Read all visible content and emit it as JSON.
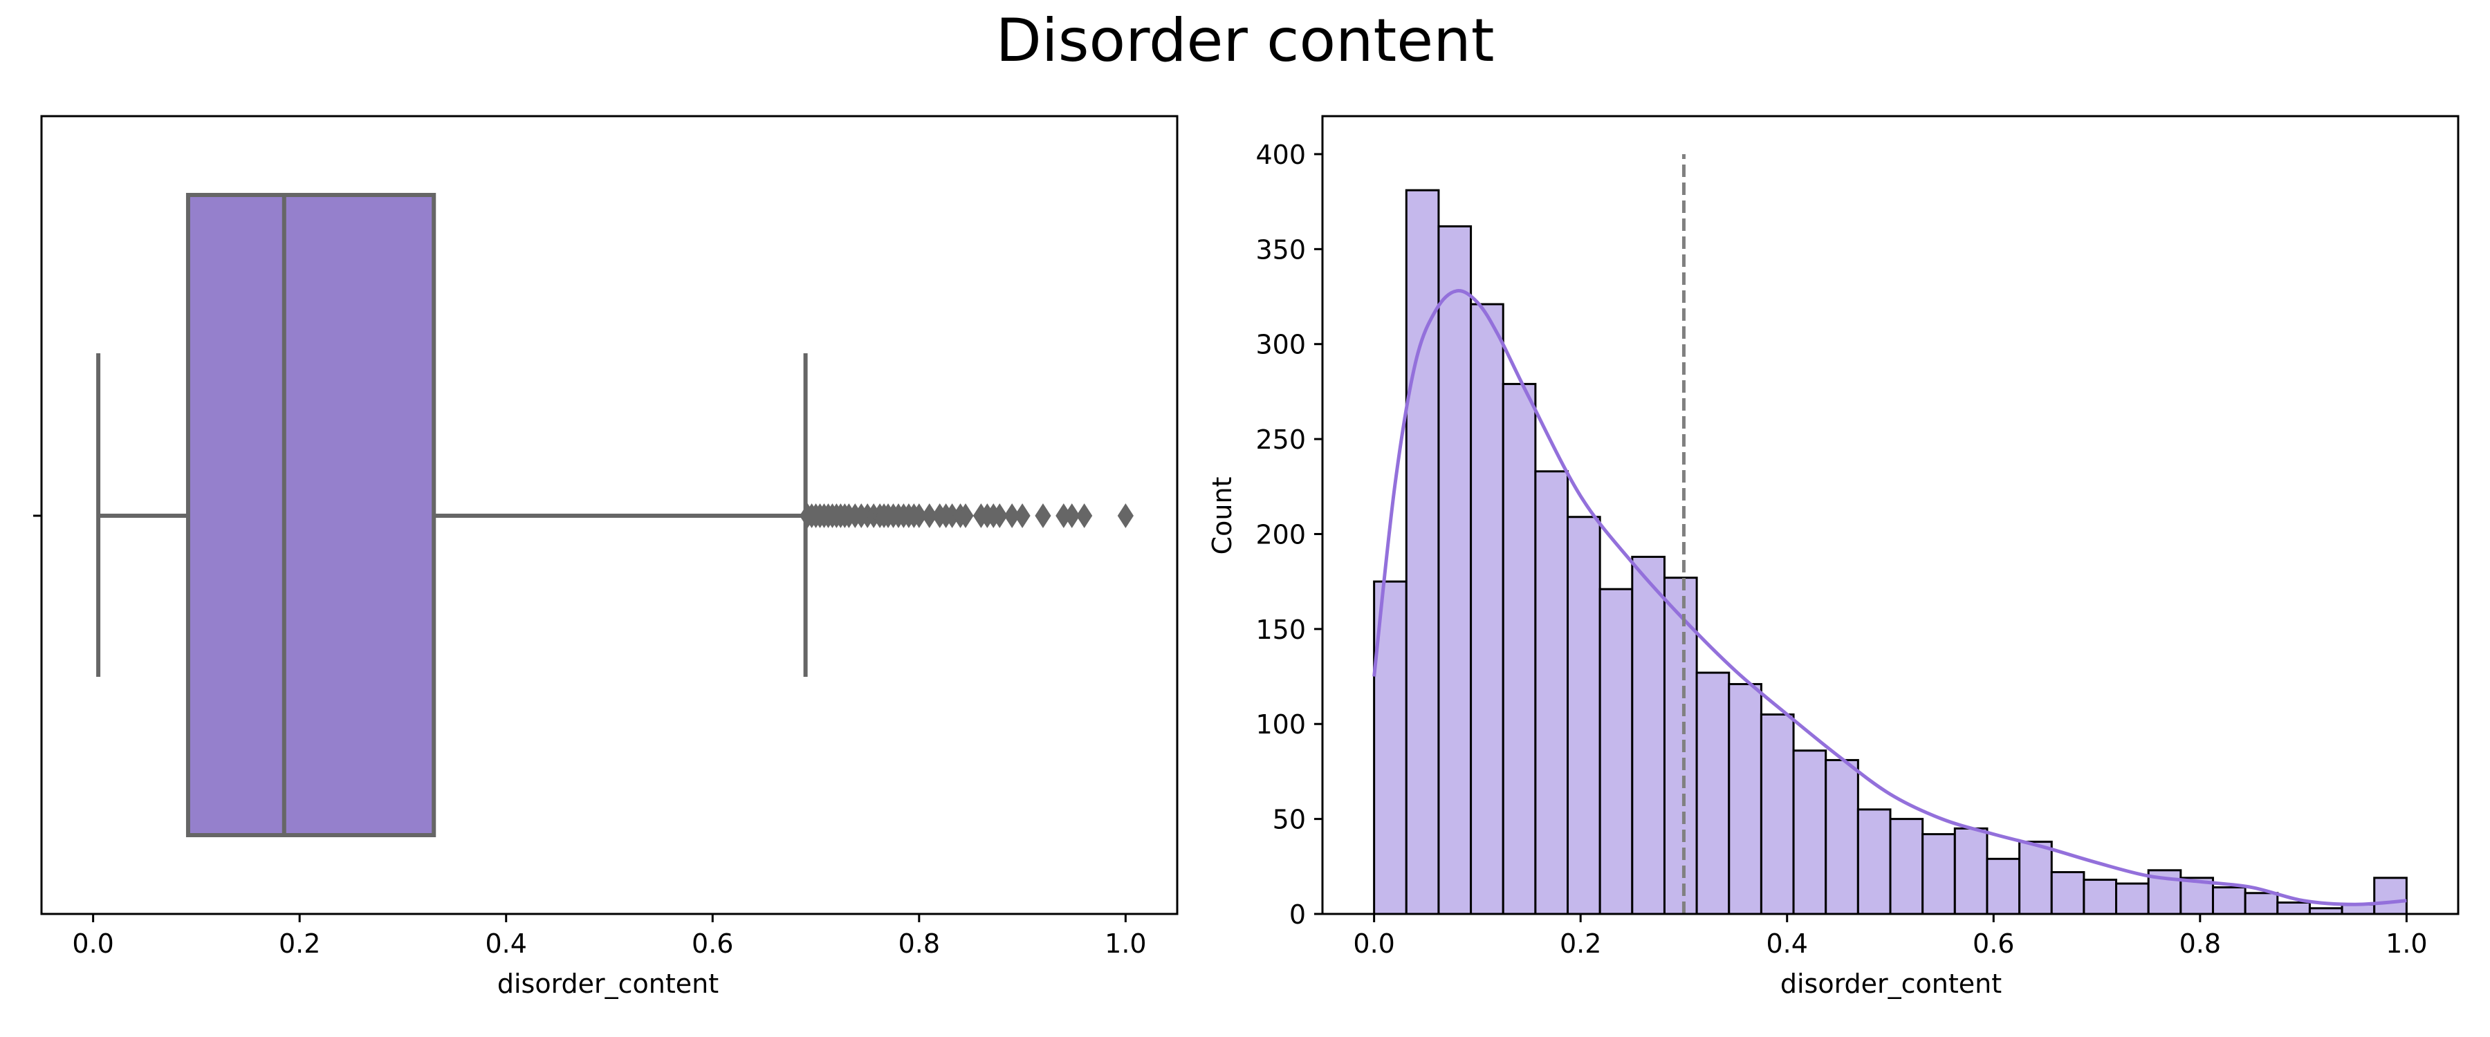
{
  "figure": {
    "title": "Disorder content"
  },
  "colors": {
    "box_fill": "#9580cc",
    "box_line": "#666666",
    "hist_fill": "#c5b8ec",
    "hist_edge": "#000000",
    "kde_line": "#9370db",
    "ref_line": "#808080"
  },
  "chart_data": [
    {
      "type": "box",
      "title": "",
      "xlabel": "disorder_content",
      "ylabel": "",
      "xlim": [
        -0.05,
        1.05
      ],
      "xticks": [
        "0.0",
        "0.2",
        "0.4",
        "0.6",
        "0.8",
        "1.0"
      ],
      "box": {
        "whisker_low": 0.005,
        "q1": 0.092,
        "median": 0.185,
        "q3": 0.33,
        "whisker_high": 0.69
      },
      "outliers": [
        0.692,
        0.696,
        0.7,
        0.704,
        0.708,
        0.712,
        0.716,
        0.72,
        0.724,
        0.728,
        0.732,
        0.738,
        0.744,
        0.75,
        0.756,
        0.762,
        0.766,
        0.77,
        0.775,
        0.78,
        0.785,
        0.79,
        0.795,
        0.8,
        0.81,
        0.82,
        0.826,
        0.832,
        0.84,
        0.845,
        0.86,
        0.866,
        0.872,
        0.878,
        0.89,
        0.9,
        0.92,
        0.94,
        0.948,
        0.96,
        1.0
      ]
    },
    {
      "type": "histogram",
      "title": "",
      "xlabel": "disorder_content",
      "ylabel": "Count",
      "xlim": [
        -0.05,
        1.05
      ],
      "ylim": [
        0,
        420
      ],
      "xticks": [
        "0.0",
        "0.2",
        "0.4",
        "0.6",
        "0.8",
        "1.0"
      ],
      "yticks": [
        "0",
        "50",
        "100",
        "150",
        "200",
        "250",
        "300",
        "350",
        "400"
      ],
      "bin_start": 0.0,
      "bin_width": 0.03125,
      "counts": [
        175,
        381,
        362,
        321,
        279,
        233,
        209,
        171,
        188,
        177,
        127,
        121,
        105,
        86,
        81,
        55,
        50,
        42,
        45,
        29,
        38,
        22,
        18,
        16,
        23,
        19,
        14,
        11,
        6,
        3,
        5,
        19
      ],
      "kde": {
        "x": [
          0.0,
          0.02,
          0.04,
          0.06,
          0.08,
          0.1,
          0.12,
          0.15,
          0.2,
          0.25,
          0.3,
          0.35,
          0.4,
          0.45,
          0.5,
          0.55,
          0.6,
          0.65,
          0.7,
          0.75,
          0.8,
          0.85,
          0.9,
          0.95,
          1.0
        ],
        "y": [
          125,
          225,
          290,
          318,
          328,
          322,
          305,
          272,
          220,
          185,
          155,
          128,
          105,
          83,
          63,
          50,
          42,
          35,
          27,
          20,
          17,
          14,
          7,
          5,
          7
        ]
      },
      "reference_line": {
        "x": 0.3,
        "y_top": 400,
        "style": "dashed"
      }
    }
  ]
}
